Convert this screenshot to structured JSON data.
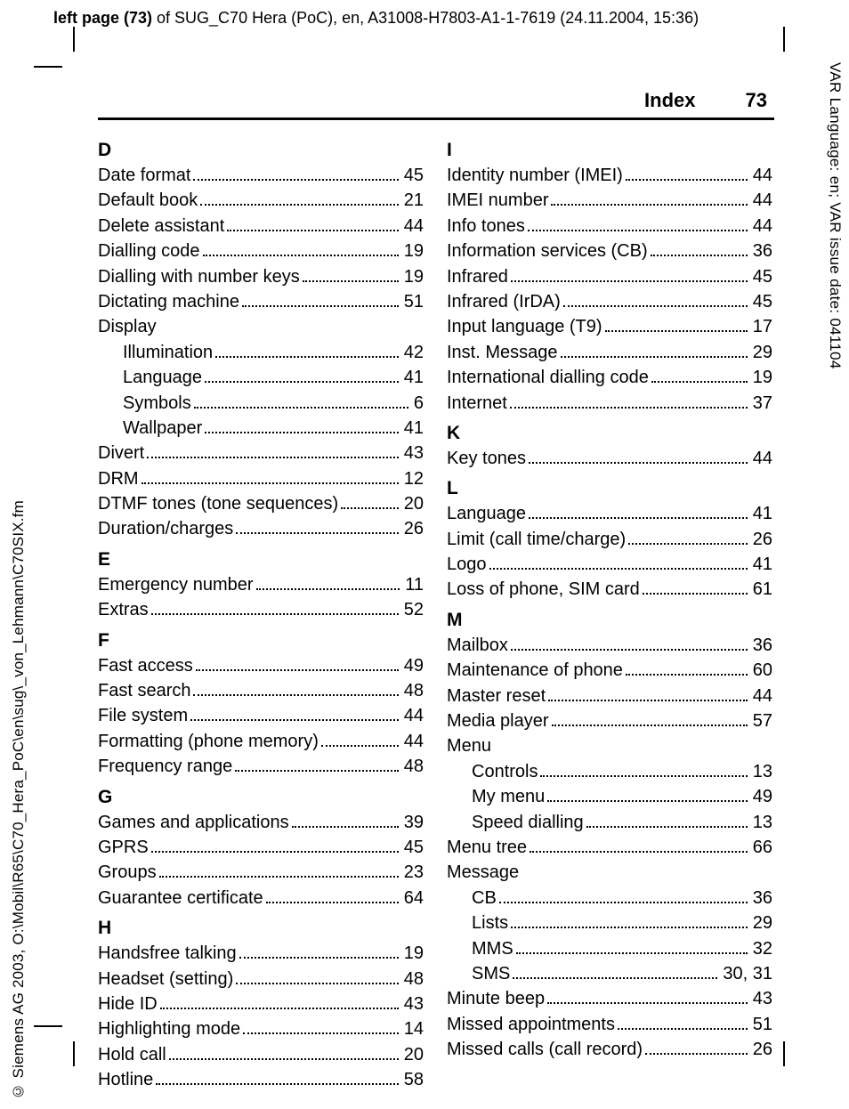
{
  "meta": {
    "top_header_bold": "left page (73)",
    "top_header_rest": " of SUG_C70 Hera (PoC), en, A31008-H7803-A1-1-7619 (24.11.2004, 15:36)",
    "side_right": "VAR Language: en; VAR issue date: 041104",
    "side_left": "© Siemens AG 2003, O:\\Mobil\\R65\\C70_Hera_PoC\\en\\sug\\_von_Lehmann\\C70SIX.fm"
  },
  "header": {
    "title": "Index",
    "page_number": "73"
  },
  "columns": [
    {
      "sections": [
        {
          "letter": "D",
          "entries": [
            {
              "t": "Date format",
              "p": "45"
            },
            {
              "t": "Default book",
              "p": "21"
            },
            {
              "t": "Delete assistant",
              "p": "44"
            },
            {
              "t": "Dialling code",
              "p": "19"
            },
            {
              "t": "Dialling with number keys",
              "p": "19"
            },
            {
              "t": "Dictating machine",
              "p": "51"
            },
            {
              "t": "Display",
              "noval": true
            },
            {
              "t": "Illumination",
              "p": "42",
              "sub": true
            },
            {
              "t": "Language",
              "p": "41",
              "sub": true
            },
            {
              "t": "Symbols",
              "p": "6",
              "sub": true
            },
            {
              "t": "Wallpaper",
              "p": "41",
              "sub": true
            },
            {
              "t": "Divert",
              "p": "43"
            },
            {
              "t": "DRM",
              "p": "12"
            },
            {
              "t": "DTMF tones (tone sequences)",
              "p": "20"
            },
            {
              "t": "Duration/charges",
              "p": "26"
            }
          ]
        },
        {
          "letter": "E",
          "entries": [
            {
              "t": "Emergency number",
              "p": "11"
            },
            {
              "t": "Extras",
              "p": "52"
            }
          ]
        },
        {
          "letter": "F",
          "entries": [
            {
              "t": "Fast access",
              "p": "49"
            },
            {
              "t": "Fast search",
              "p": "48"
            },
            {
              "t": "File system",
              "p": "44"
            },
            {
              "t": "Formatting (phone memory)",
              "p": "44"
            },
            {
              "t": "Frequency range",
              "p": "48"
            }
          ]
        },
        {
          "letter": "G",
          "entries": [
            {
              "t": "Games and applications",
              "p": "39"
            },
            {
              "t": "GPRS",
              "p": "45"
            },
            {
              "t": "Groups",
              "p": "23"
            },
            {
              "t": "Guarantee certificate",
              "p": "64"
            }
          ]
        },
        {
          "letter": "H",
          "entries": [
            {
              "t": "Handsfree talking",
              "p": "19"
            },
            {
              "t": "Headset (setting)",
              "p": "48"
            },
            {
              "t": "Hide ID",
              "p": "43"
            },
            {
              "t": "Highlighting mode",
              "p": "14"
            },
            {
              "t": "Hold call",
              "p": "20"
            },
            {
              "t": "Hotline",
              "p": "58"
            }
          ]
        }
      ]
    },
    {
      "sections": [
        {
          "letter": "I",
          "entries": [
            {
              "t": "Identity number (IMEI)",
              "p": "44"
            },
            {
              "t": "IMEI number",
              "p": "44"
            },
            {
              "t": "Info tones",
              "p": "44"
            },
            {
              "t": "Information services (CB)",
              "p": "36"
            },
            {
              "t": "Infrared",
              "p": "45"
            },
            {
              "t": "Infrared (IrDA)",
              "p": "45"
            },
            {
              "t": "Input language (T9)",
              "p": "17"
            },
            {
              "t": "Inst. Message",
              "p": "29"
            },
            {
              "t": "International dialling code",
              "p": "19"
            },
            {
              "t": "Internet",
              "p": "37"
            }
          ]
        },
        {
          "letter": "K",
          "entries": [
            {
              "t": "Key tones",
              "p": "44"
            }
          ]
        },
        {
          "letter": "L",
          "entries": [
            {
              "t": "Language",
              "p": "41"
            },
            {
              "t": "Limit (call time/charge)",
              "p": "26"
            },
            {
              "t": "Logo",
              "p": "41"
            },
            {
              "t": "Loss of phone, SIM card",
              "p": "61"
            }
          ]
        },
        {
          "letter": "M",
          "entries": [
            {
              "t": "Mailbox",
              "p": "36"
            },
            {
              "t": "Maintenance of phone",
              "p": "60"
            },
            {
              "t": "Master reset",
              "p": "44"
            },
            {
              "t": "Media player",
              "p": "57"
            },
            {
              "t": "Menu",
              "noval": true
            },
            {
              "t": "Controls",
              "p": "13",
              "sub": true
            },
            {
              "t": "My menu",
              "p": "49",
              "sub": true
            },
            {
              "t": "Speed dialling",
              "p": "13",
              "sub": true
            },
            {
              "t": "Menu tree",
              "p": "66"
            },
            {
              "t": "Message",
              "noval": true
            },
            {
              "t": "CB",
              "p": "36",
              "sub": true
            },
            {
              "t": "Lists",
              "p": "29",
              "sub": true
            },
            {
              "t": "MMS",
              "p": "32",
              "sub": true
            },
            {
              "t": "SMS",
              "p": "30, 31",
              "sub": true
            },
            {
              "t": "Minute beep",
              "p": "43"
            },
            {
              "t": "Missed appointments",
              "p": "51"
            },
            {
              "t": "Missed calls (call record)",
              "p": "26"
            }
          ]
        }
      ]
    }
  ]
}
